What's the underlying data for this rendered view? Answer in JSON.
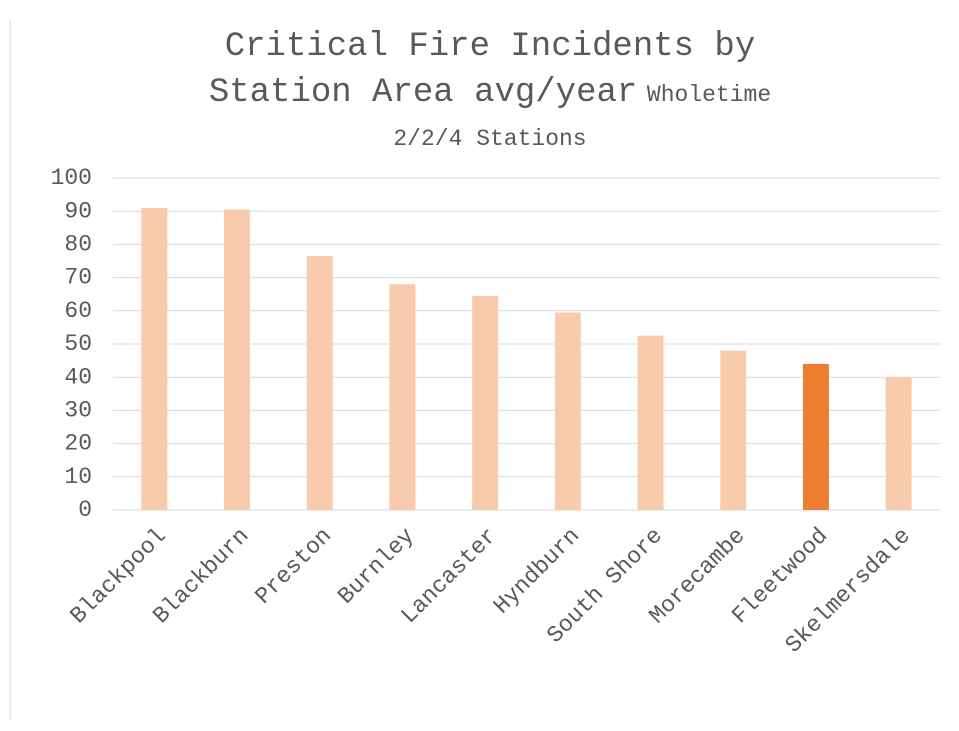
{
  "chart_data": {
    "type": "bar",
    "title": "Critical Fire Incidents by Station Area avg/year",
    "subtitle": "Wholetime 2/2/4 Stations",
    "categories": [
      "Blackpool",
      "Blackburn",
      "Preston",
      "Burnley",
      "Lancaster",
      "Hyndburn",
      "South Shore",
      "Morecambe",
      "Fleetwood",
      "Skelmersdale"
    ],
    "values": [
      91,
      90.5,
      76.5,
      68,
      64.5,
      59.5,
      52.5,
      48,
      44,
      40
    ],
    "colors": [
      "#f8cbad",
      "#f8cbad",
      "#f8cbad",
      "#f8cbad",
      "#f8cbad",
      "#f8cbad",
      "#f8cbad",
      "#f8cbad",
      "#ed7d31",
      "#f8cbad"
    ],
    "ylim": [
      0,
      100
    ],
    "yticks": [
      0,
      10,
      20,
      30,
      40,
      50,
      60,
      70,
      80,
      90,
      100
    ],
    "grid": true
  }
}
